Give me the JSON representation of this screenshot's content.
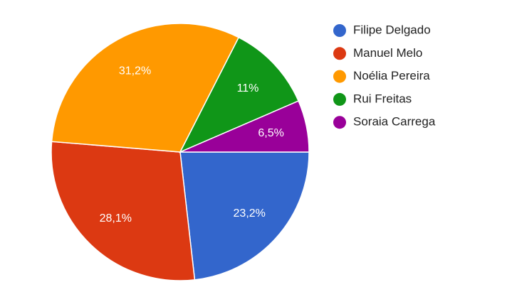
{
  "chart_data": {
    "type": "pie",
    "categories": [
      "Filipe Delgado",
      "Manuel Melo",
      "Noélia Pereira",
      "Rui Freitas",
      "Soraia Carrega"
    ],
    "values": [
      23.2,
      28.1,
      31.2,
      11,
      6.5
    ],
    "value_labels": [
      "23,2%",
      "28,1%",
      "31,2%",
      "11%",
      "6,5%"
    ],
    "colors": [
      "#3366cc",
      "#dc3912",
      "#ff9900",
      "#109618",
      "#990099"
    ],
    "legend": "right"
  }
}
